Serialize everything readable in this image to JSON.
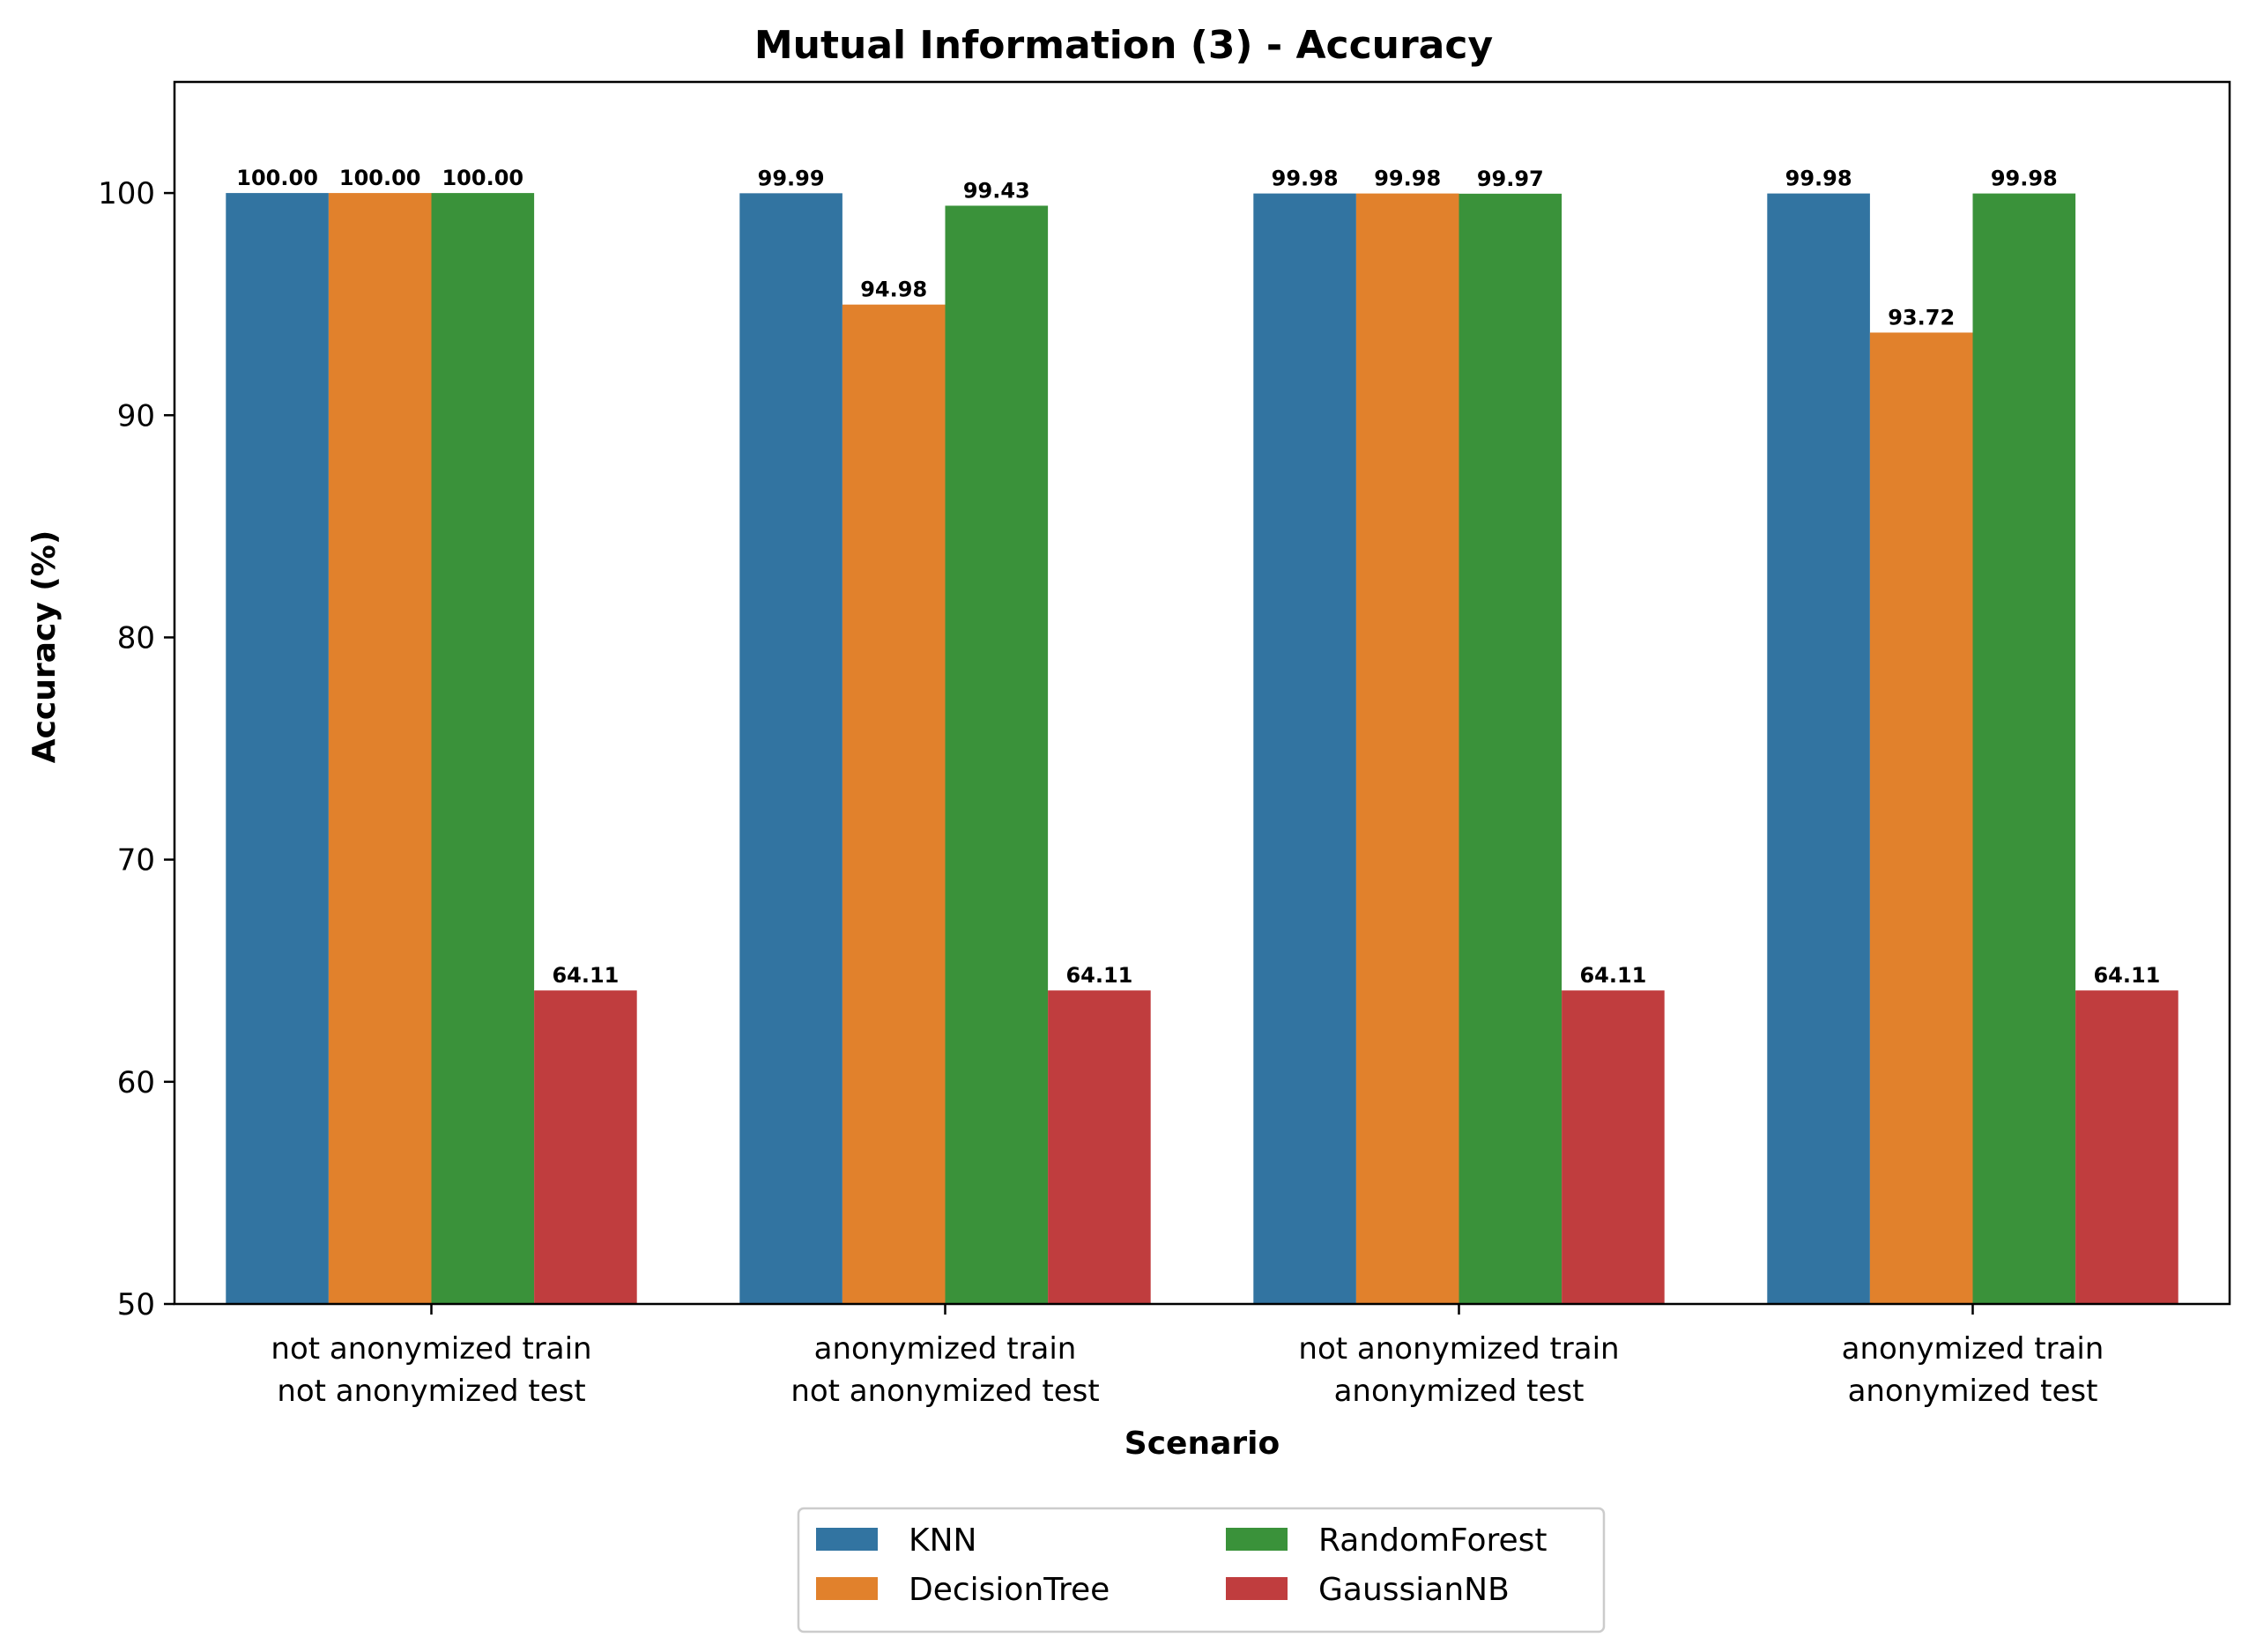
{
  "chart_data": {
    "type": "bar",
    "title": "Mutual Information (3) - Accuracy",
    "xlabel": "Scenario",
    "ylabel": "Accuracy (%)",
    "ylim": [
      50,
      105
    ],
    "yticks": [
      50,
      60,
      70,
      80,
      90,
      100
    ],
    "categories": [
      [
        "not anonymized train",
        "not anonymized test"
      ],
      [
        "anonymized train",
        "not anonymized test"
      ],
      [
        "not anonymized train",
        "anonymized test"
      ],
      [
        "anonymized train",
        "anonymized test"
      ]
    ],
    "series": [
      {
        "name": "KNN",
        "color": "#3274a1",
        "values": [
          100.0,
          99.99,
          99.98,
          99.98
        ]
      },
      {
        "name": "DecisionTree",
        "color": "#e1812c",
        "values": [
          100.0,
          94.98,
          99.98,
          93.72
        ]
      },
      {
        "name": "RandomForest",
        "color": "#3a923a",
        "values": [
          100.0,
          99.43,
          99.97,
          99.98
        ]
      },
      {
        "name": "GaussianNB",
        "color": "#c03d3e",
        "values": [
          64.11,
          64.11,
          64.11,
          64.11
        ]
      }
    ],
    "data_labels": [
      [
        "100.00",
        "99.99",
        "99.98",
        "99.98"
      ],
      [
        "100.00",
        "94.98",
        "99.98",
        "93.72"
      ],
      [
        "100.00",
        "99.43",
        "99.97",
        "99.98"
      ],
      [
        "64.11",
        "64.11",
        "64.11",
        "64.11"
      ]
    ],
    "legend_position": "bottom-center",
    "legend_columns": 2,
    "grid": false
  }
}
